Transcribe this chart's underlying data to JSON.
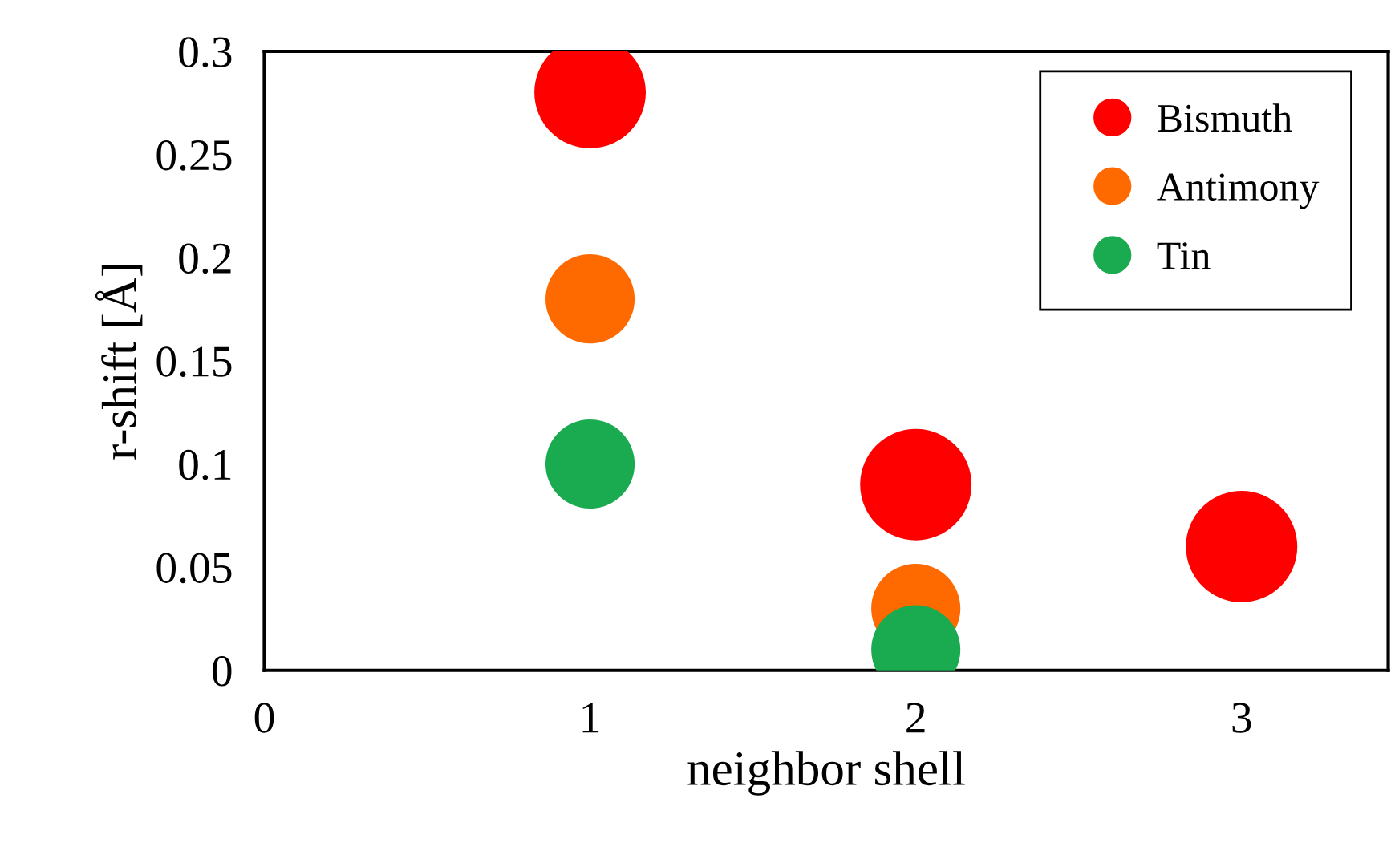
{
  "chart_data": {
    "type": "bubble",
    "xlabel": "neighbor shell",
    "ylabel": "r-shift [Å]",
    "xlim": [
      0,
      3.45
    ],
    "xticks": [
      0,
      1,
      2,
      3
    ],
    "ylim": [
      0,
      0.3
    ],
    "yticks": [
      0,
      0.05,
      0.1,
      0.15,
      0.2,
      0.25,
      0.3
    ],
    "grid": false,
    "legend": "top right",
    "marker": "circle",
    "series": [
      {
        "name": "Bismuth",
        "color": "#ff0000",
        "x": [
          1,
          2,
          3
        ],
        "values": [
          0.28,
          0.09,
          0.06
        ],
        "sizes": [
          1,
          1,
          1
        ]
      },
      {
        "name": "Antimony",
        "color": "#ff6a00",
        "x": [
          1,
          2
        ],
        "values": [
          0.18,
          0.03
        ],
        "sizes": [
          0.64,
          0.64
        ]
      },
      {
        "name": "Tin",
        "color": "#1aaa50",
        "x": [
          1,
          2
        ],
        "values": [
          0.1,
          0.01
        ],
        "sizes": [
          0.64,
          0.64
        ]
      }
    ]
  }
}
